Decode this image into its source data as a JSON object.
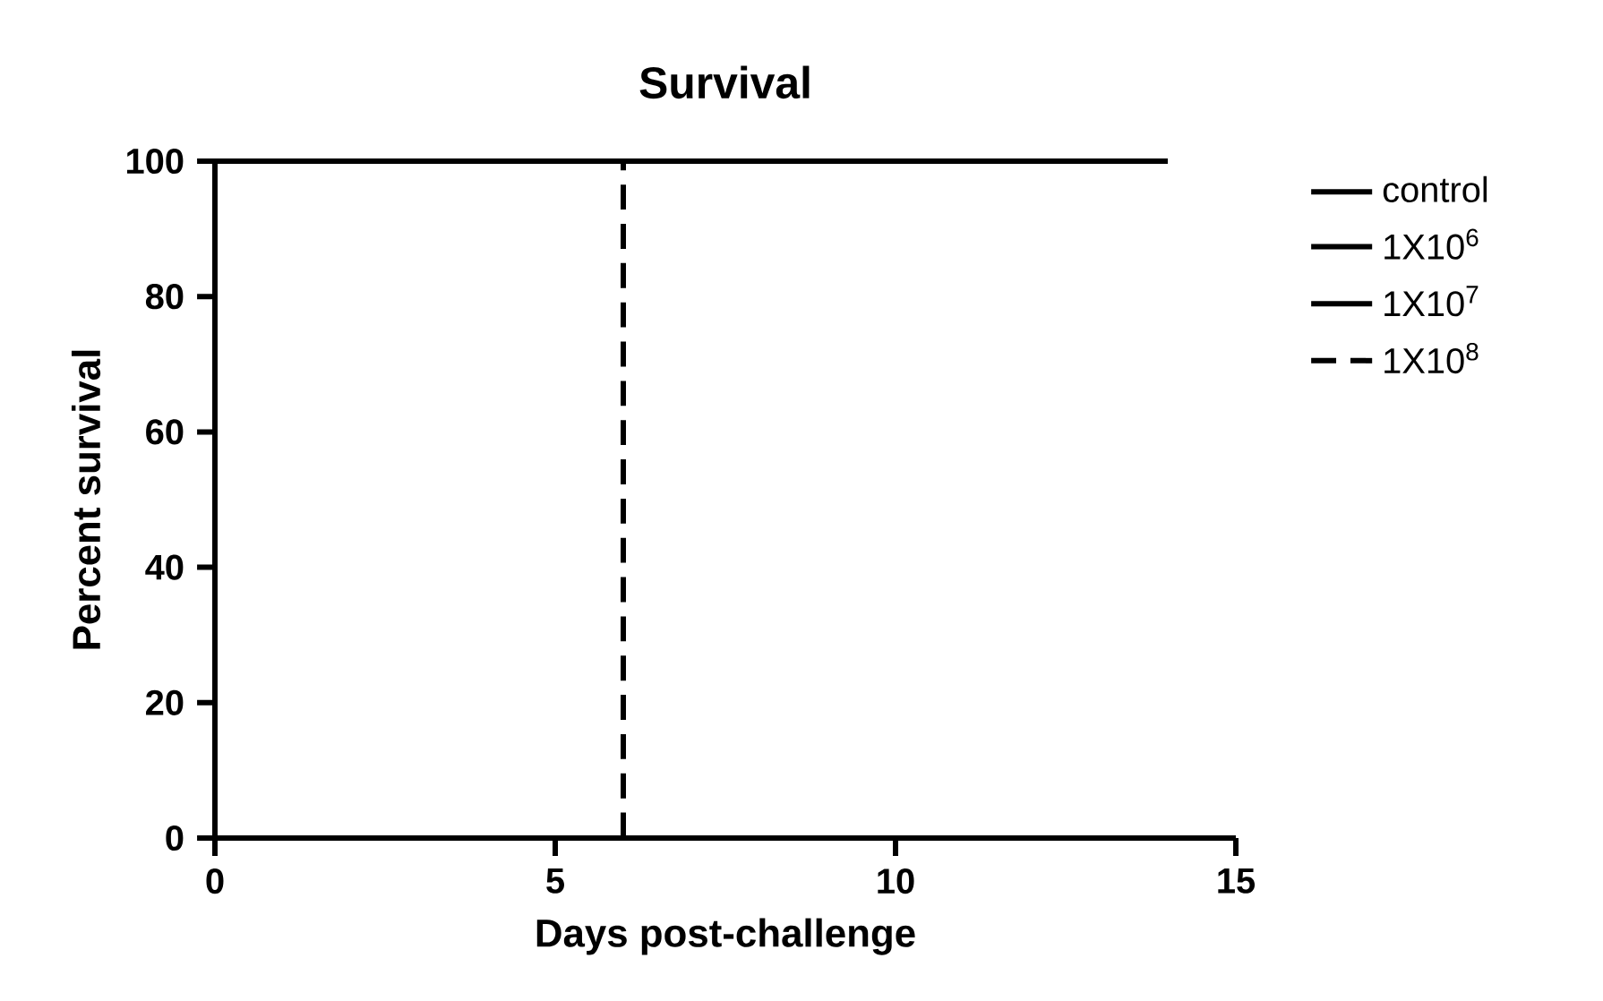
{
  "chart_data": {
    "type": "step",
    "title": "Survival",
    "xlabel": "Days post-challenge",
    "ylabel": "Percent survival",
    "xlim": [
      0,
      15
    ],
    "xticks": [
      0,
      5,
      10,
      15
    ],
    "ylim": [
      0,
      100
    ],
    "yticks": [
      0,
      20,
      40,
      60,
      80,
      100
    ],
    "legend": "right",
    "grid": false,
    "series": [
      {
        "name": "control",
        "color": "#000000",
        "line_style": "solid",
        "values": [
          null,
          null
        ]
      },
      {
        "name": "1X10$^{6}$",
        "color": "#000000",
        "line_style": "solid",
        "values": [
          null,
          null
        ]
      },
      {
        "name": "1X10$^{7}$",
        "color": "#000000",
        "line_style": "solid",
        "x": [
          0,
          14
        ],
        "values": [
          100,
          100
        ]
      },
      {
        "name": "1X10$^{8}$",
        "color": "#000000",
        "line_style": "dashed",
        "x": [
          0,
          6
        ],
        "values": [
          100,
          0
        ]
      }
    ]
  }
}
